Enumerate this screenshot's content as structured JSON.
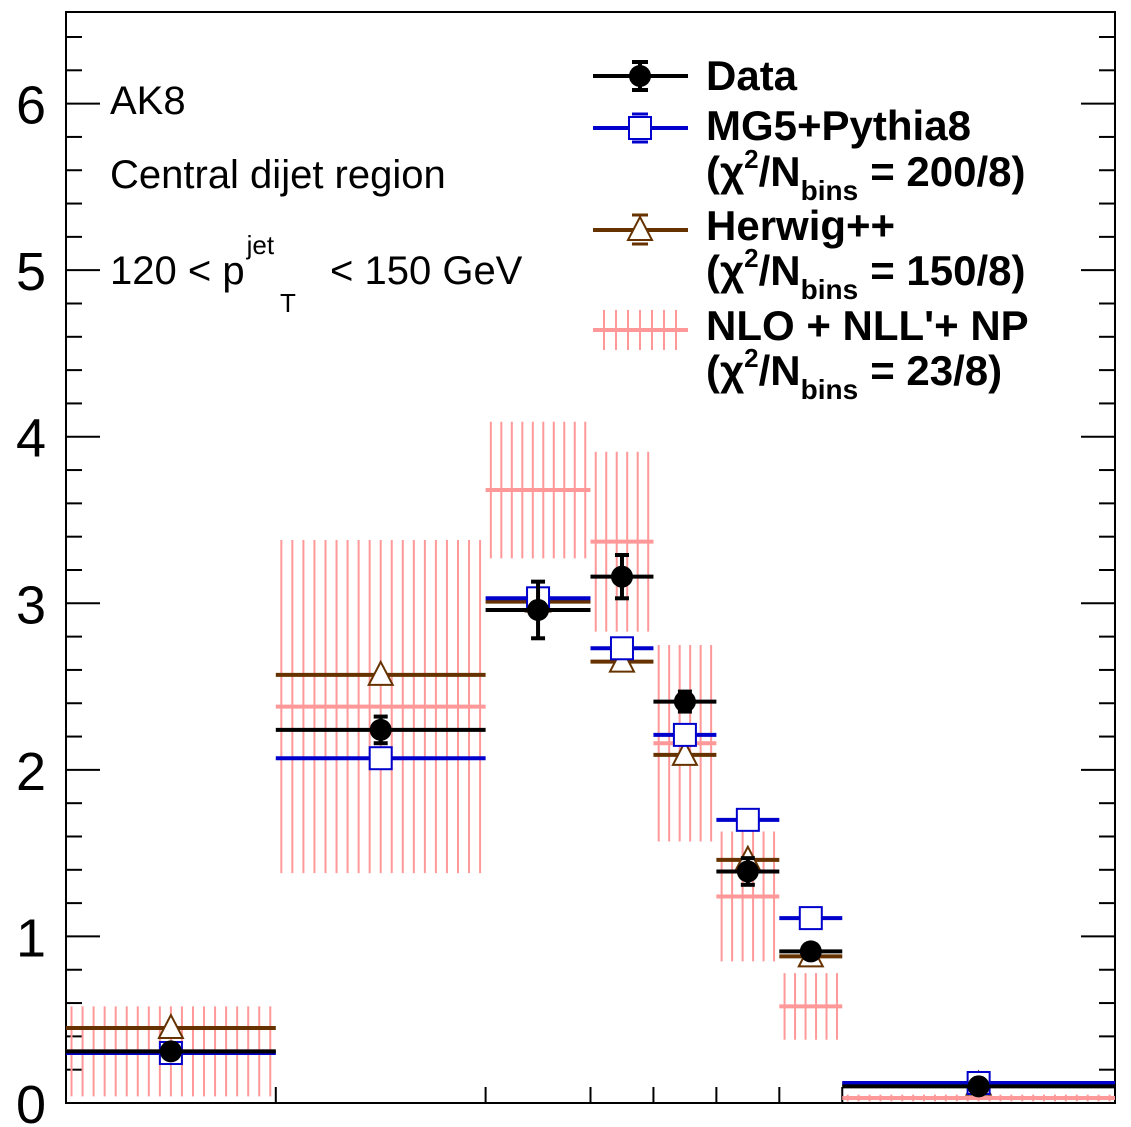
{
  "chart_data": {
    "type": "scatter",
    "title": "",
    "xlabel": "",
    "ylabel": "",
    "ylim": [
      0,
      6.55
    ],
    "yticks": [
      "0",
      "1",
      "2",
      "3",
      "4",
      "5",
      "6"
    ],
    "x_bins": [
      [
        0.0,
        0.1
      ],
      [
        0.1,
        0.2
      ],
      [
        0.2,
        0.25
      ],
      [
        0.25,
        0.28
      ],
      [
        0.28,
        0.31
      ],
      [
        0.31,
        0.34
      ],
      [
        0.34,
        0.37
      ],
      [
        0.37,
        0.5
      ]
    ],
    "annotations": {
      "jet_type": "AK8",
      "region": "Central dijet region",
      "pt_prefix": "120 < p",
      "pt_sup": "jet",
      "pt_sub": "T",
      "pt_suffix": "< 150 GeV"
    },
    "legend": {
      "position": "top-right",
      "chi_label": "(χ",
      "chi_sup": "2",
      "chi_slash": "/N",
      "chi_sub": "bins",
      "entries": [
        {
          "name": "Data",
          "chi": ""
        },
        {
          "name": "MG5+Pythia8",
          "chi": "= 200/8)"
        },
        {
          "name": "Herwig++",
          "chi": "= 150/8)"
        },
        {
          "name": "NLO + NLL'+ NP",
          "chi": "= 23/8)"
        }
      ]
    },
    "series": [
      {
        "name": "Data",
        "color": "#000000",
        "marker": "filled-circle",
        "values": [
          0.31,
          2.24,
          2.96,
          3.16,
          2.41,
          1.39,
          0.91,
          0.1
        ],
        "errors": [
          0.04,
          0.08,
          0.17,
          0.13,
          0.06,
          0.08,
          0.04,
          0.02
        ]
      },
      {
        "name": "MG5+Pythia8",
        "color": "#0000cc",
        "marker": "open-square",
        "values": [
          0.3,
          2.07,
          3.03,
          2.73,
          2.21,
          1.7,
          1.11,
          0.12
        ],
        "errors": [
          0,
          0,
          0,
          0,
          0,
          0,
          0,
          0
        ]
      },
      {
        "name": "Herwig++",
        "color": "#663300",
        "marker": "open-triangle",
        "values": [
          0.45,
          2.57,
          3.01,
          2.65,
          2.09,
          1.46,
          0.88,
          0.11
        ],
        "errors": [
          0,
          0,
          0,
          0,
          0,
          0,
          0,
          0
        ]
      },
      {
        "name": "NLO + NLL'+ NP",
        "color": "#ff9999",
        "marker": "band",
        "values": [
          0.31,
          2.38,
          3.68,
          3.37,
          2.16,
          1.24,
          0.58,
          0.03
        ],
        "errors": [
          0.27,
          1.0,
          0.41,
          0.54,
          0.59,
          0.39,
          0.2,
          0.02
        ]
      }
    ]
  }
}
